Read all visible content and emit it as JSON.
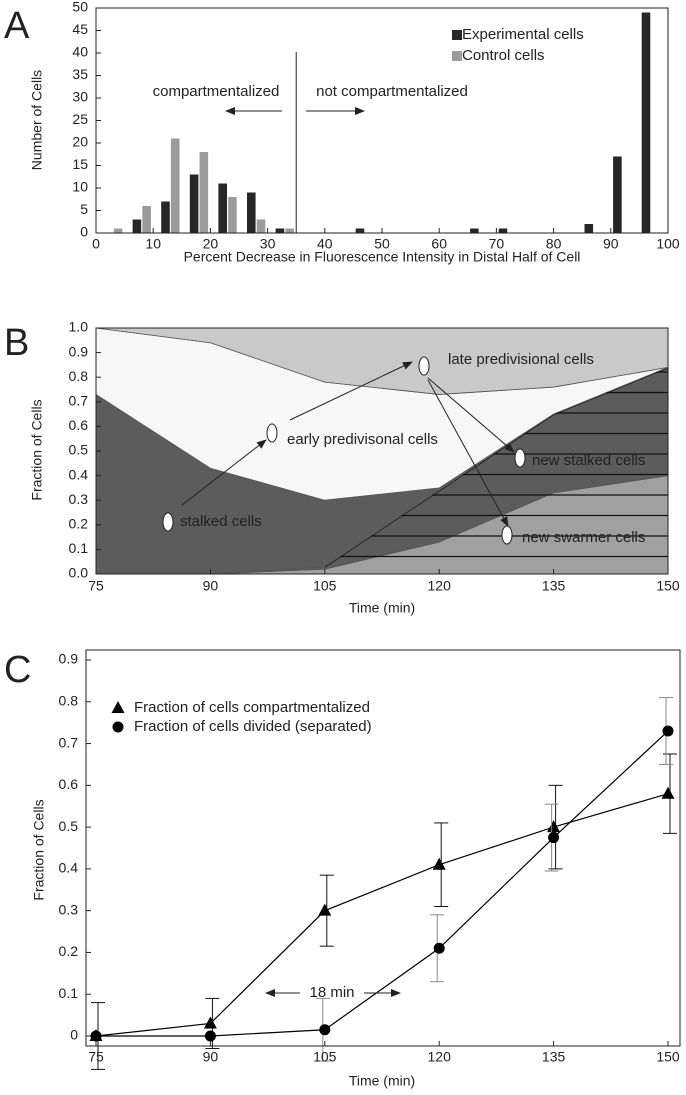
{
  "chart_data": [
    {
      "type": "bar",
      "panel_label": "A",
      "xlabel": "Percent Decrease in Fluorescence Intensity in Distal Half of Cell",
      "ylabel": "Number of Cells",
      "x": [
        3,
        8,
        13,
        18,
        23,
        28,
        33,
        47,
        67,
        72,
        87,
        92,
        97
      ],
      "series": [
        {
          "name": "Experimental cells",
          "color": "#262626",
          "values": [
            0,
            3,
            7,
            13,
            11,
            9,
            1,
            1,
            1,
            1,
            2,
            17,
            49
          ]
        },
        {
          "name": "Control cells",
          "color": "#9b9b9b",
          "values": [
            1,
            6,
            21,
            18,
            8,
            3,
            1,
            0,
            0,
            0,
            0,
            0,
            0
          ]
        }
      ],
      "xlim": [
        0,
        100
      ],
      "xticks": [
        0,
        10,
        20,
        30,
        40,
        50,
        60,
        70,
        80,
        90,
        100
      ],
      "ylim": [
        0,
        50
      ],
      "yticks": [
        0,
        5,
        10,
        15,
        20,
        25,
        30,
        35,
        40,
        45,
        50
      ],
      "legend": "upper right",
      "divider": 35,
      "annotations": [
        "compartmentalized",
        "not compartmentalized"
      ]
    },
    {
      "type": "area",
      "panel_label": "B",
      "xlabel": "Time (min)",
      "ylabel": "Fraction of Cells",
      "x": [
        75,
        90,
        105,
        120,
        135,
        150
      ],
      "series": [
        {
          "name": "new swarmer cells",
          "color": "#a0a0a0",
          "hatch": true,
          "values": [
            0,
            0,
            0.02,
            0.13,
            0.33,
            0.4
          ]
        },
        {
          "name": "new stalked cells",
          "color": "#5c5c5c",
          "hatch": true,
          "values": [
            0,
            0,
            0.01,
            0.21,
            0.32,
            0.44
          ]
        },
        {
          "name": "stalked cells",
          "color": "#5c5c5c",
          "hatch": false,
          "values": [
            0.73,
            0.43,
            0.27,
            0.01,
            0,
            0
          ]
        },
        {
          "name": "early predivisonal cells",
          "color": "#f7f7f7",
          "hatch": false,
          "values": [
            0.27,
            0.51,
            0.48,
            0.38,
            0.11,
            0
          ]
        },
        {
          "name": "late predivisional cells",
          "color": "#c9c9c9",
          "hatch": false,
          "values": [
            0,
            0.06,
            0.22,
            0.27,
            0.24,
            0.16
          ]
        }
      ],
      "xlim": [
        75,
        150
      ],
      "xticks": [
        75,
        90,
        105,
        120,
        135,
        150
      ],
      "ylim": [
        0,
        1
      ],
      "yticks": [
        {
          "value": 0,
          "label": "0.0"
        },
        0.1,
        0.2,
        0.3,
        0.4,
        0.5,
        0.6,
        0.7,
        0.8,
        0.9,
        {
          "value": 1,
          "label": "1.0"
        }
      ]
    },
    {
      "type": "line",
      "panel_label": "C",
      "xlabel": "Time (min)",
      "ylabel": "Fraction of Cells",
      "x": [
        75,
        90,
        105,
        120,
        135,
        150
      ],
      "series": [
        {
          "name": "Fraction of cells compartmentalized",
          "color": "#000000",
          "marker": "triangle",
          "values": [
            0,
            0.03,
            0.3,
            0.41,
            0.5,
            0.58
          ],
          "errors": [
            0.08,
            0.06,
            0.085,
            0.1,
            0.1,
            0.095
          ]
        },
        {
          "name": "Fraction of cells divided (separated)",
          "color": "#000000",
          "marker": "circle",
          "values": [
            0,
            0,
            0.015,
            0.21,
            0.475,
            0.73
          ],
          "errors": [
            null,
            null,
            0.075,
            0.08,
            0.08,
            0.08
          ]
        }
      ],
      "xlim": [
        75,
        150
      ],
      "xticks": [
        75,
        90,
        105,
        120,
        135,
        150
      ],
      "ylim": [
        0,
        0.9
      ],
      "yticks": [
        0,
        0.1,
        0.2,
        0.3,
        0.4,
        0.5,
        0.6,
        0.7,
        0.8,
        0.9
      ],
      "annotation": "18 min"
    }
  ]
}
